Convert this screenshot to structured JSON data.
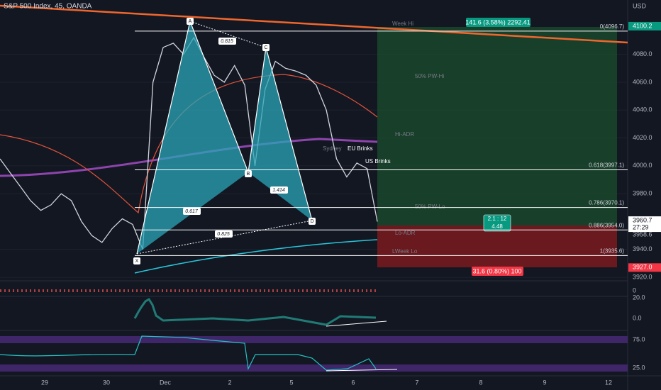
{
  "header": {
    "title": "S&P 500 Index, 45, OANDA",
    "currency": "USD"
  },
  "price_axis": {
    "ylim": [
      3918,
      4119
    ],
    "ticks": [
      {
        "value": 4080,
        "label": "4080.0"
      },
      {
        "value": 4060,
        "label": "4060.0"
      },
      {
        "value": 4040,
        "label": "4040.0"
      },
      {
        "value": 4020,
        "label": "4020.0"
      },
      {
        "value": 4000,
        "label": "4000.0"
      },
      {
        "value": 3980,
        "label": "3980.0"
      },
      {
        "value": 3940,
        "label": "3940.0"
      },
      {
        "value": 3920,
        "label": "3920.0"
      }
    ],
    "price_labels": [
      {
        "value": 4100.2,
        "label": "4100.2",
        "color": "#089981"
      },
      {
        "value": 3960.7,
        "label": "3960.7",
        "color": "#ffffff",
        "countdown": "27:29"
      },
      {
        "value": 3927.0,
        "label": "3927.0",
        "color": "#f23645"
      }
    ],
    "side_label": "3958.6"
  },
  "time_axis": {
    "labels": [
      "29",
      "30",
      "Dec",
      "2",
      "5",
      "6",
      "7",
      "8",
      "9",
      "12"
    ]
  },
  "price_series": {
    "values": [
      4005,
      3995,
      3985,
      3975,
      3968,
      3972,
      3980,
      3975,
      3960,
      3950,
      3945,
      3955,
      3962,
      3958,
      3940,
      4060,
      4085,
      4088,
      4080,
      4092,
      4078,
      4065,
      4060,
      4072,
      4058,
      4000,
      4055,
      4075,
      4070,
      4068,
      4065,
      4058,
      4040,
      4005,
      3992,
      4002,
      3998,
      3960
    ]
  },
  "fib_levels": [
    {
      "value": 4096.7,
      "label": "0(4096.7)"
    },
    {
      "value": 3997.1,
      "label": "0.618(3997.1)"
    },
    {
      "value": 3970.1,
      "label": "0.786(3970.1)"
    },
    {
      "value": 3954.0,
      "label": "0.886(3954.0)"
    },
    {
      "value": 3935.6,
      "label": "1(3935.6)"
    }
  ],
  "pattern": {
    "points": [
      "X",
      "A",
      "B",
      "C",
      "D"
    ],
    "ratios": {
      "xab": 0.617,
      "abc": 0.815,
      "bcd": 1.414,
      "xad": 0.825
    }
  },
  "position": {
    "target": "141.6 (3.58%) 2292.41",
    "stop": "31.6 (0.80%) 100",
    "ratio": "2.1 : 12",
    "ratio_value": "4.48"
  },
  "levels_text": [
    "Week Hi",
    "50% PW-Hi",
    "Hi-ADR",
    "Sydney",
    "EU Brinks",
    "US Brinks",
    "50% PW-Lo",
    "Lo-ADR",
    "LWeek Lo"
  ],
  "indicators": {
    "volume_ticks": [
      "0"
    ],
    "macd_ticks": [
      "20.0",
      "0.0"
    ],
    "rsi_ticks": [
      "75.0",
      "25.0"
    ]
  }
}
